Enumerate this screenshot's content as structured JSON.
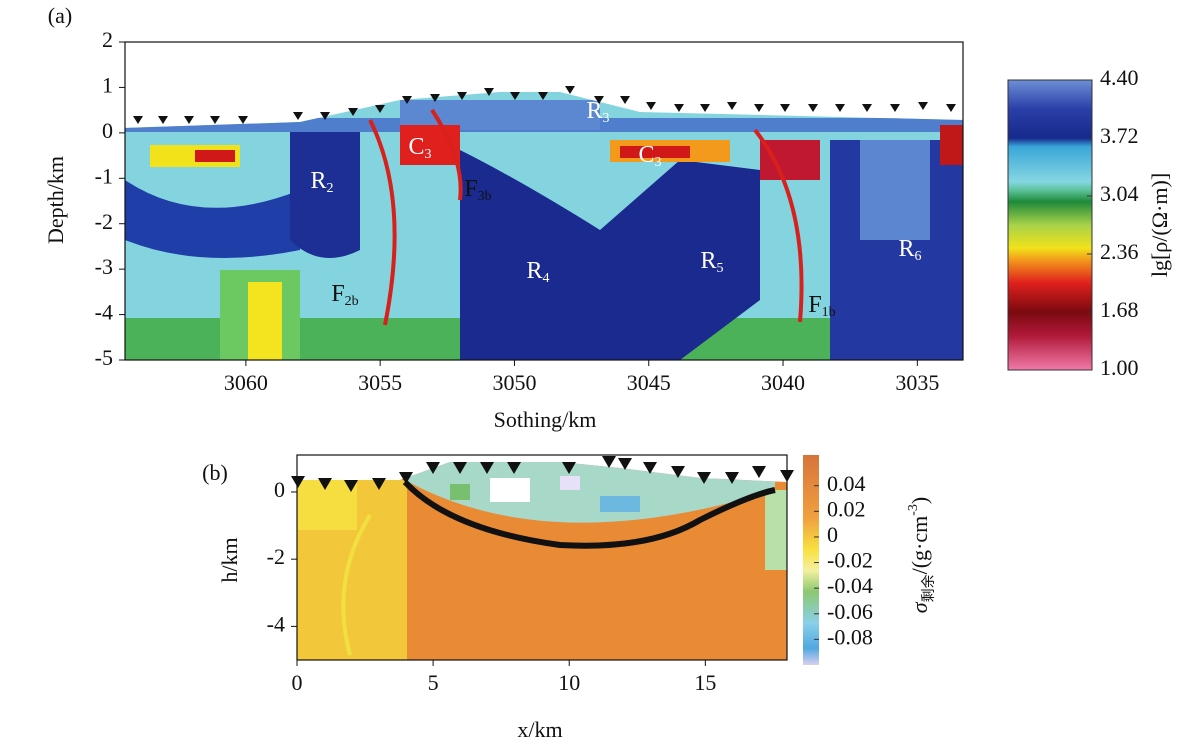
{
  "chart_data": [
    {
      "type": "heatmap",
      "panel": "(a)",
      "xlabel": "Sothing/km",
      "ylabel": "Depth/km",
      "xlim": [
        3064.5,
        3033.3
      ],
      "xticks": [
        3060,
        3055,
        3050,
        3045,
        3040,
        3035
      ],
      "ylim": [
        -5,
        2
      ],
      "yticks": [
        2,
        1,
        0,
        -1,
        -2,
        -3,
        -4,
        -5
      ],
      "colorbar": {
        "label": "lg[ρ/(Ω·m)]",
        "lim": [
          1,
          4.4
        ],
        "ticks": [
          {
            "value": 4.4,
            "label": "4.40"
          },
          3.72,
          3.04,
          2.36,
          1.68,
          {
            "value": 1,
            "label": "1.00"
          }
        ]
      },
      "annotations": [
        {
          "text": "R",
          "sub": "2"
        },
        {
          "text": "C",
          "sub": "3"
        },
        {
          "text": "R",
          "sub": "3"
        },
        {
          "text": "C",
          "sub": "3"
        },
        {
          "text": "F",
          "sub": "3b"
        },
        {
          "text": "R",
          "sub": "4"
        },
        {
          "text": "R",
          "sub": "5"
        },
        {
          "text": "R",
          "sub": "6"
        },
        {
          "text": "F",
          "sub": "2b"
        },
        {
          "text": "F",
          "sub": "1b"
        }
      ]
    },
    {
      "type": "heatmap",
      "panel": "(b)",
      "xlabel": "x/km",
      "ylabel": "h/km",
      "xlim": [
        0,
        18
      ],
      "xticks": [
        0,
        5,
        10,
        15
      ],
      "ylim": [
        -5,
        1.1
      ],
      "yticks": [
        0,
        -2,
        -4
      ],
      "colorbar": {
        "label": {
          "symbol": "σ",
          "sub": "剩余",
          "unit": "/(g·cm",
          "sup": "-3",
          "close": ")"
        },
        "lim": [
          -0.1,
          0.064
        ],
        "ticks": [
          0.04,
          0.02,
          0,
          -0.02,
          -0.04,
          -0.06,
          -0.08
        ]
      }
    }
  ]
}
